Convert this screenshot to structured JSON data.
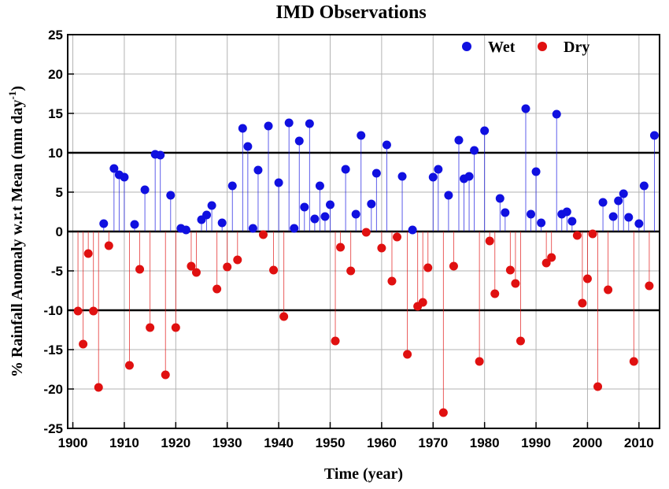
{
  "chart_data": {
    "type": "scatter",
    "title": "IMD Observations",
    "xlabel": "Time (year)",
    "ylabel_main": "% Rainfall Anomaly w.r.t Mean (mm day",
    "ylabel_sup": "-1",
    "ylabel_close": ")",
    "xlim": [
      1899,
      2014
    ],
    "ylim": [
      -25,
      25
    ],
    "x_ticks": [
      1900,
      1910,
      1920,
      1930,
      1940,
      1950,
      1960,
      1970,
      1980,
      1990,
      2000,
      2010
    ],
    "y_ticks": [
      -25,
      -20,
      -15,
      -10,
      -5,
      0,
      5,
      10,
      15,
      20,
      25
    ],
    "reference_lines": [
      10,
      0,
      -10
    ],
    "grid": true,
    "legend_position": "top-right",
    "series": [
      {
        "name": "Wet",
        "color": "#1010e0",
        "points": [
          [
            1906,
            1.0
          ],
          [
            1908,
            8.0
          ],
          [
            1909,
            7.2
          ],
          [
            1910,
            6.9
          ],
          [
            1912,
            0.9
          ],
          [
            1914,
            5.3
          ],
          [
            1916,
            9.8
          ],
          [
            1917,
            9.7
          ],
          [
            1919,
            4.6
          ],
          [
            1921,
            0.4
          ],
          [
            1922,
            0.2
          ],
          [
            1925,
            1.5
          ],
          [
            1926,
            2.1
          ],
          [
            1927,
            3.3
          ],
          [
            1929,
            1.1
          ],
          [
            1931,
            5.8
          ],
          [
            1933,
            13.1
          ],
          [
            1934,
            10.8
          ],
          [
            1935,
            0.4
          ],
          [
            1936,
            7.8
          ],
          [
            1938,
            13.4
          ],
          [
            1940,
            6.2
          ],
          [
            1942,
            13.8
          ],
          [
            1943,
            0.4
          ],
          [
            1944,
            11.5
          ],
          [
            1945,
            3.1
          ],
          [
            1946,
            13.7
          ],
          [
            1947,
            1.6
          ],
          [
            1948,
            5.8
          ],
          [
            1949,
            1.9
          ],
          [
            1950,
            3.4
          ],
          [
            1953,
            7.9
          ],
          [
            1955,
            2.2
          ],
          [
            1956,
            12.2
          ],
          [
            1958,
            3.5
          ],
          [
            1959,
            7.4
          ],
          [
            1961,
            11.0
          ],
          [
            1964,
            7.0
          ],
          [
            1966,
            0.2
          ],
          [
            1970,
            6.9
          ],
          [
            1971,
            7.9
          ],
          [
            1973,
            4.6
          ],
          [
            1975,
            11.6
          ],
          [
            1976,
            6.7
          ],
          [
            1977,
            7.0
          ],
          [
            1978,
            10.3
          ],
          [
            1980,
            12.8
          ],
          [
            1983,
            4.2
          ],
          [
            1984,
            2.4
          ],
          [
            1988,
            15.6
          ],
          [
            1989,
            2.2
          ],
          [
            1990,
            7.6
          ],
          [
            1991,
            1.1
          ],
          [
            1994,
            14.9
          ],
          [
            1995,
            2.2
          ],
          [
            1996,
            2.5
          ],
          [
            1997,
            1.3
          ],
          [
            2003,
            3.7
          ],
          [
            2005,
            1.9
          ],
          [
            2006,
            3.9
          ],
          [
            2007,
            4.8
          ],
          [
            2008,
            1.8
          ],
          [
            2010,
            1.0
          ],
          [
            2011,
            5.8
          ],
          [
            2013,
            12.2
          ]
        ]
      },
      {
        "name": "Dry",
        "color": "#e01010",
        "points": [
          [
            1901,
            -10.1
          ],
          [
            1902,
            -14.3
          ],
          [
            1903,
            -2.8
          ],
          [
            1904,
            -10.1
          ],
          [
            1905,
            -19.8
          ],
          [
            1907,
            -1.8
          ],
          [
            1911,
            -17.0
          ],
          [
            1913,
            -4.8
          ],
          [
            1915,
            -12.2
          ],
          [
            1918,
            -18.2
          ],
          [
            1920,
            -12.2
          ],
          [
            1923,
            -4.4
          ],
          [
            1924,
            -5.2
          ],
          [
            1928,
            -7.3
          ],
          [
            1930,
            -4.5
          ],
          [
            1932,
            -3.6
          ],
          [
            1937,
            -0.4
          ],
          [
            1939,
            -4.9
          ],
          [
            1941,
            -10.8
          ],
          [
            1951,
            -13.9
          ],
          [
            1952,
            -2.0
          ],
          [
            1954,
            -5.0
          ],
          [
            1957,
            -0.1
          ],
          [
            1960,
            -2.1
          ],
          [
            1962,
            -6.3
          ],
          [
            1963,
            -0.7
          ],
          [
            1965,
            -15.6
          ],
          [
            1967,
            -9.5
          ],
          [
            1968,
            -9.0
          ],
          [
            1969,
            -4.6
          ],
          [
            1972,
            -23.0
          ],
          [
            1974,
            -4.4
          ],
          [
            1979,
            -16.5
          ],
          [
            1981,
            -1.2
          ],
          [
            1982,
            -7.9
          ],
          [
            1985,
            -4.9
          ],
          [
            1986,
            -6.6
          ],
          [
            1987,
            -13.9
          ],
          [
            1992,
            -4.0
          ],
          [
            1993,
            -3.3
          ],
          [
            1998,
            -0.5
          ],
          [
            1999,
            -9.1
          ],
          [
            2000,
            -6.0
          ],
          [
            2001,
            -0.3
          ],
          [
            2002,
            -19.7
          ],
          [
            2004,
            -7.4
          ],
          [
            2009,
            -16.5
          ],
          [
            2012,
            -6.9
          ]
        ]
      }
    ]
  }
}
